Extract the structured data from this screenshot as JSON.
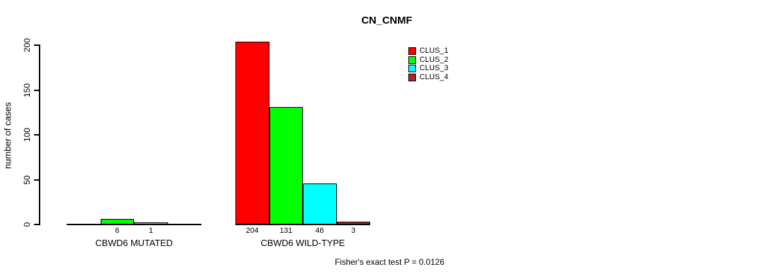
{
  "chart_data": {
    "type": "bar",
    "title": "CN_CNMF",
    "ylabel": "number of cases",
    "ylim": [
      0,
      200
    ],
    "yticks": [
      0,
      50,
      100,
      150,
      200
    ],
    "grid": false,
    "categories": [
      "CBWD6 MUTATED",
      "CBWD6 WILD-TYPE"
    ],
    "series": [
      {
        "name": "CLUS_1",
        "color": "#FF0000",
        "values": [
          0,
          204
        ]
      },
      {
        "name": "CLUS_2",
        "color": "#00FF00",
        "values": [
          6,
          131
        ]
      },
      {
        "name": "CLUS_3",
        "color": "#00FFFF",
        "values": [
          1,
          46
        ]
      },
      {
        "name": "CLUS_4",
        "color": "#A52A2A",
        "values": [
          0,
          3
        ]
      }
    ],
    "groups": [
      {
        "label": "CBWD6 MUTATED",
        "values": [
          0,
          6,
          1,
          0
        ],
        "bar_labels": [
          "",
          "6",
          "1",
          ""
        ]
      },
      {
        "label": "CBWD6 WILD-TYPE",
        "values": [
          204,
          131,
          46,
          3
        ],
        "bar_labels": [
          "204",
          "131",
          "46",
          "3"
        ]
      }
    ],
    "legend": {
      "position": "top-right",
      "entries": [
        {
          "label": "CLUS_1",
          "color": "#FF0000"
        },
        {
          "label": "CLUS_2",
          "color": "#00FF00"
        },
        {
          "label": "CLUS_3",
          "color": "#00FFFF"
        },
        {
          "label": "CLUS_4",
          "color": "#A52A2A"
        }
      ]
    },
    "annotation": "Fisher's exact test P = 0.0126",
    "axis_color": "#000000",
    "background_color": "#FFFFFF"
  }
}
